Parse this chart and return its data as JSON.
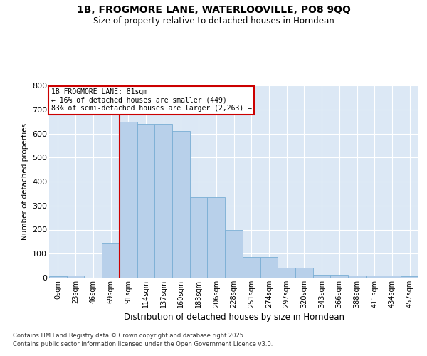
{
  "title": "1B, FROGMORE LANE, WATERLOOVILLE, PO8 9QQ",
  "subtitle": "Size of property relative to detached houses in Horndean",
  "xlabel": "Distribution of detached houses by size in Horndean",
  "ylabel": "Number of detached properties",
  "annotation_line1": "1B FROGMORE LANE: 81sqm",
  "annotation_line2": "← 16% of detached houses are smaller (449)",
  "annotation_line3": "83% of semi-detached houses are larger (2,263) →",
  "footer1": "Contains HM Land Registry data © Crown copyright and database right 2025.",
  "footer2": "Contains public sector information licensed under the Open Government Licence v3.0.",
  "categories": [
    "0sqm",
    "23sqm",
    "46sqm",
    "69sqm",
    "91sqm",
    "114sqm",
    "137sqm",
    "160sqm",
    "183sqm",
    "206sqm",
    "228sqm",
    "251sqm",
    "274sqm",
    "297sqm",
    "320sqm",
    "343sqm",
    "366sqm",
    "388sqm",
    "411sqm",
    "434sqm",
    "457sqm"
  ],
  "values": [
    5,
    10,
    0,
    145,
    650,
    640,
    640,
    610,
    335,
    335,
    200,
    85,
    85,
    42,
    42,
    12,
    12,
    10,
    10,
    10,
    5
  ],
  "bar_color": "#b8d0ea",
  "bar_edge_color": "#7aaed4",
  "vline_color": "#cc0000",
  "vline_index": 3.5,
  "annotation_box_color": "#cc0000",
  "bg_color": "#dce8f5",
  "ylim": [
    0,
    800
  ],
  "yticks": [
    0,
    100,
    200,
    300,
    400,
    500,
    600,
    700,
    800
  ]
}
